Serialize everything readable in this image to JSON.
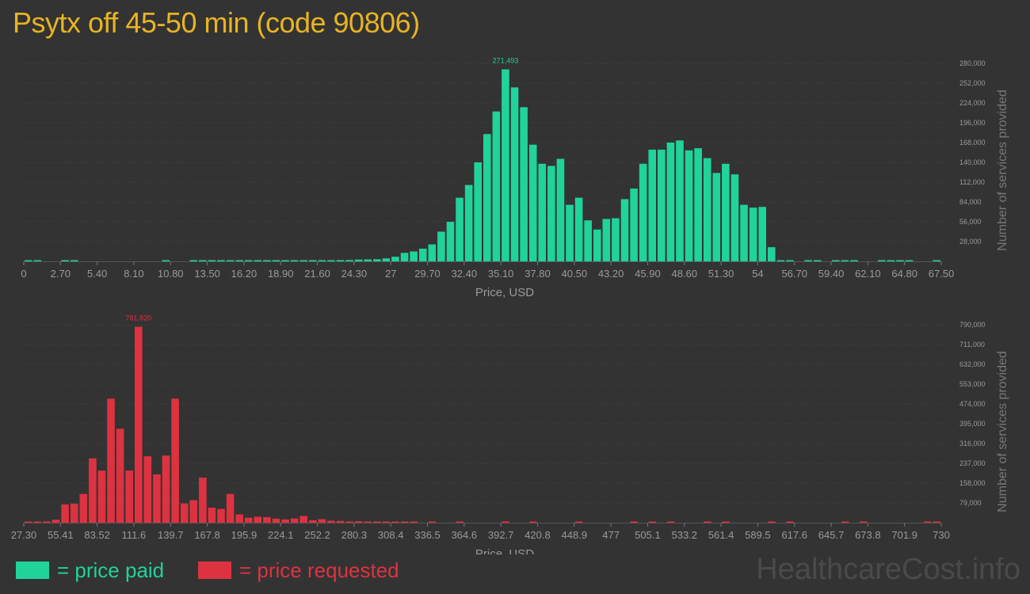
{
  "title": "Psytx off 45-50 min (code 90806)",
  "colors": {
    "paid": "#20d39a",
    "requested": "#dd3340",
    "title": "#e8b423",
    "background": "#333333"
  },
  "legend": {
    "paid": "= price paid",
    "requested": "= price requested"
  },
  "watermark": "HealthcareCost.info",
  "chart_data": [
    {
      "type": "bar",
      "name": "price paid",
      "xlabel": "Price, USD",
      "ylabel": "Number of services provided",
      "x_tick_labels": [
        "0",
        "2.70",
        "5.40",
        "8.10",
        "10.80",
        "13.50",
        "16.20",
        "18.90",
        "21.60",
        "24.30",
        "27",
        "29.70",
        "32.40",
        "35.10",
        "37.80",
        "40.50",
        "43.20",
        "45.90",
        "48.60",
        "51.30",
        "54",
        "56.70",
        "59.40",
        "62.10",
        "64.80",
        "67.50"
      ],
      "y_tick_labels": [
        "28,000",
        "56,000",
        "84,000",
        "112,000",
        "140,000",
        "168,000",
        "196,000",
        "224,000",
        "252,000",
        "280,000"
      ],
      "xlim": [
        0,
        67.5
      ],
      "ylim": [
        0,
        280000
      ],
      "max_label": "271,493",
      "bar_width": 0.675,
      "x": [
        0,
        0.675,
        2.7,
        3.375,
        10.125,
        12.15,
        12.825,
        13.5,
        14.175,
        14.85,
        15.525,
        16.2,
        16.875,
        17.55,
        18.225,
        18.9,
        19.575,
        20.25,
        20.925,
        21.6,
        22.275,
        22.95,
        23.625,
        24.3,
        24.975,
        25.65,
        26.325,
        27,
        27.675,
        28.35,
        29.025,
        29.7,
        30.375,
        31.05,
        31.725,
        32.4,
        33.075,
        33.75,
        34.425,
        35.1,
        35.775,
        36.45,
        37.125,
        37.8,
        38.475,
        39.15,
        39.825,
        40.5,
        41.175,
        41.85,
        42.525,
        43.2,
        43.875,
        44.55,
        45.225,
        45.9,
        46.575,
        47.25,
        47.925,
        48.6,
        49.275,
        49.95,
        50.625,
        51.3,
        51.975,
        52.65,
        53.325,
        54,
        54.675,
        55.35,
        56.025,
        57.375,
        58.05,
        59.4,
        60.075,
        60.75,
        62.775,
        63.45,
        64.125,
        64.8,
        66.825
      ],
      "values": [
        1500,
        1200,
        1000,
        1000,
        900,
        800,
        900,
        900,
        1000,
        900,
        1000,
        1100,
        1000,
        1000,
        1100,
        1100,
        1100,
        1200,
        1200,
        1300,
        1500,
        1800,
        1900,
        2500,
        2700,
        3000,
        4200,
        6500,
        12000,
        14000,
        18000,
        24000,
        42000,
        56000,
        90000,
        108000,
        140000,
        180000,
        212000,
        271493,
        246000,
        218000,
        165000,
        138000,
        135000,
        145000,
        80000,
        90000,
        58000,
        45000,
        60000,
        61000,
        88000,
        103000,
        138000,
        158000,
        158000,
        168000,
        171000,
        157000,
        160000,
        146000,
        125000,
        138000,
        123000,
        80000,
        76000,
        77000,
        20000,
        1500,
        1200,
        1200,
        1000,
        1200,
        1000,
        1000,
        700,
        700,
        1000,
        1000,
        900
      ]
    },
    {
      "type": "bar",
      "name": "price requested",
      "xlabel": "Price, USD",
      "ylabel": "Number of services provided",
      "x_tick_labels": [
        "27.30",
        "55.41",
        "83.52",
        "111.6",
        "139.7",
        "167.8",
        "195.9",
        "224.1",
        "252.2",
        "280.3",
        "308.4",
        "336.5",
        "364.6",
        "392.7",
        "420.8",
        "448.9",
        "477",
        "505.1",
        "533.2",
        "561.4",
        "589.5",
        "617.6",
        "645.7",
        "673.8",
        "701.9",
        "730"
      ],
      "y_tick_labels": [
        "79,000",
        "158,000",
        "237,000",
        "316,000",
        "395,000",
        "474,000",
        "553,000",
        "632,000",
        "711,000",
        "790,000"
      ],
      "xlim": [
        27.3,
        730
      ],
      "ylim": [
        0,
        790000
      ],
      "max_label": "781,820",
      "bar_width": 7.03,
      "x": [
        27.3,
        34.33,
        41.36,
        48.39,
        55.41,
        62.44,
        69.47,
        76.5,
        83.52,
        90.55,
        97.58,
        104.61,
        111.64,
        118.67,
        125.7,
        132.72,
        139.75,
        146.78,
        153.81,
        160.84,
        167.86,
        174.89,
        181.92,
        188.95,
        195.98,
        203.0,
        210.03,
        217.06,
        224.09,
        231.12,
        238.15,
        245.17,
        252.2,
        259.23,
        266.26,
        273.29,
        280.32,
        287.34,
        294.37,
        301.4,
        308.43,
        315.46,
        322.48,
        336.54,
        357.63,
        392.77,
        413.86,
        448.99,
        491.16,
        505.21,
        519.27,
        547.39,
        561.44,
        596.59,
        610.64,
        652.81,
        666.87,
        715.93,
        722.96
      ],
      "values": [
        2500,
        3500,
        5000,
        12000,
        73000,
        76000,
        115000,
        257000,
        208000,
        495000,
        375000,
        208000,
        781820,
        265000,
        193000,
        268000,
        495000,
        77000,
        90000,
        180000,
        60000,
        55000,
        115000,
        33000,
        20000,
        24000,
        22000,
        16000,
        13000,
        17000,
        27000,
        10000,
        14000,
        8000,
        7000,
        5000,
        6000,
        4000,
        3500,
        3500,
        3000,
        3000,
        2500,
        2500,
        2500,
        5000,
        2500,
        2500,
        2500,
        2500,
        2500,
        2500,
        4000,
        2500,
        2500,
        2500,
        2500,
        2500,
        2500
      ]
    }
  ]
}
